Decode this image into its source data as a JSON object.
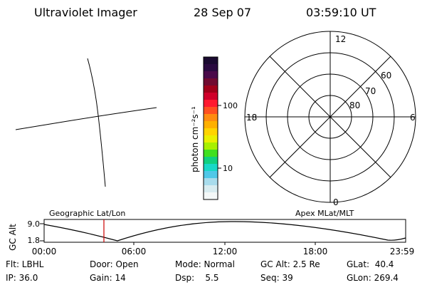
{
  "header": {
    "title": "Ultraviolet Imager",
    "date": "28 Sep 07",
    "time": "03:59:10 UT"
  },
  "colorbar": {
    "unit_label": "photon cm⁻²s⁻¹",
    "tick_100": "100",
    "tick_10": "10",
    "colors": [
      "#1a0a30",
      "#2a0a40",
      "#4a0a4a",
      "#700a30",
      "#a0001a",
      "#d0002a",
      "#ff1a30",
      "#ff5020",
      "#ff8c10",
      "#ffb000",
      "#ffd400",
      "#eaf000",
      "#a8f000",
      "#40e020",
      "#10d080",
      "#18d8c8",
      "#50c8e8",
      "#a8dcec",
      "#d8ecf0",
      "#f4f8f8"
    ]
  },
  "polar": {
    "mlt_12": "12",
    "mlt_18": "18",
    "mlt_6": "6",
    "mlt_0": "0",
    "lat_60": "60",
    "lat_70": "70",
    "lat_80": "80"
  },
  "timeline": {
    "left_label": "Geographic Lat/Lon",
    "right_label": "Apex MLat/MLT",
    "axis_title": "GC Alt",
    "y_top": "9.0",
    "y_bottom": "1.8",
    "ticks": [
      "00:00",
      "06:00",
      "12:00",
      "18:00",
      "23:59"
    ]
  },
  "status": {
    "flt": "Flt: LBHL",
    "door": "Door: Open",
    "mode": "Mode: Normal",
    "gc_alt": "GC Alt: 2.5 Re",
    "glat": "GLat:  40.4",
    "ip": "IP: 36.0",
    "gain": "Gain: 14",
    "dsp": "Dsp:    5.5",
    "seq": "Seq: 39",
    "glon": "GLon: 269.4"
  }
}
